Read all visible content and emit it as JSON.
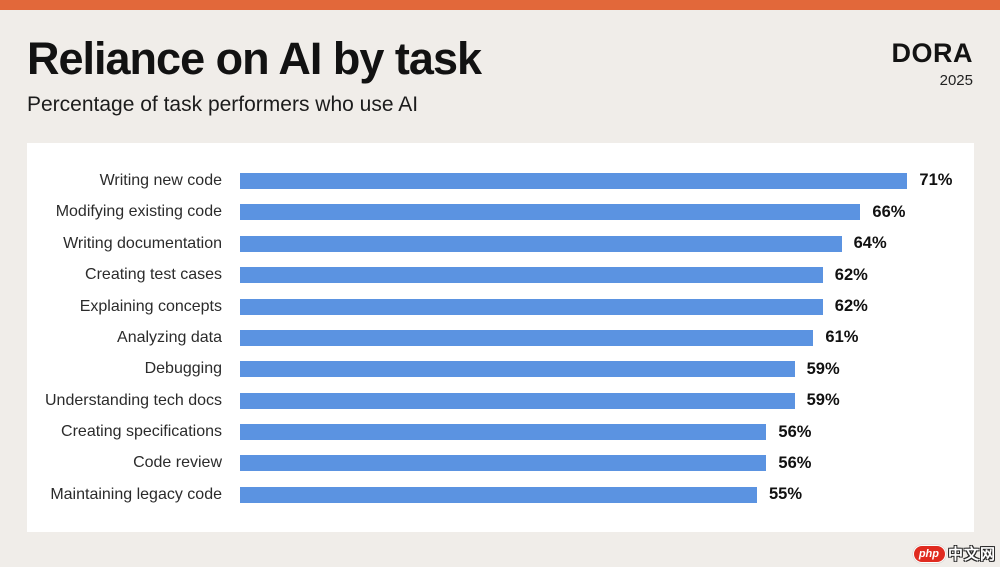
{
  "header": {
    "title": "Reliance on AI by task",
    "subtitle": "Percentage of task performers who use AI",
    "brand": "DORA",
    "brand_year": "2025"
  },
  "chart_data": {
    "type": "bar",
    "orientation": "horizontal",
    "title": "Reliance on AI by task",
    "subtitle": "Percentage of task performers who use AI",
    "categories": [
      "Writing new code",
      "Modifying existing code",
      "Writing documentation",
      "Creating test cases",
      "Explaining concepts",
      "Analyzing data",
      "Debugging",
      "Understanding tech docs",
      "Creating specifications",
      "Code review",
      "Maintaining legacy code"
    ],
    "values": [
      71,
      66,
      64,
      62,
      62,
      61,
      59,
      59,
      56,
      56,
      55
    ],
    "value_suffix": "%",
    "xlim": [
      0,
      75
    ],
    "grid": false,
    "legend": false,
    "bar_color": "#5b93e1",
    "sorted": "descending"
  },
  "colors": {
    "accent_orange": "#e2683a",
    "background": "#f0ede9",
    "card": "#ffffff",
    "bar_blue": "#5b93e1",
    "text": "#121212"
  },
  "watermark": {
    "badge": "php",
    "text": "中文网"
  }
}
